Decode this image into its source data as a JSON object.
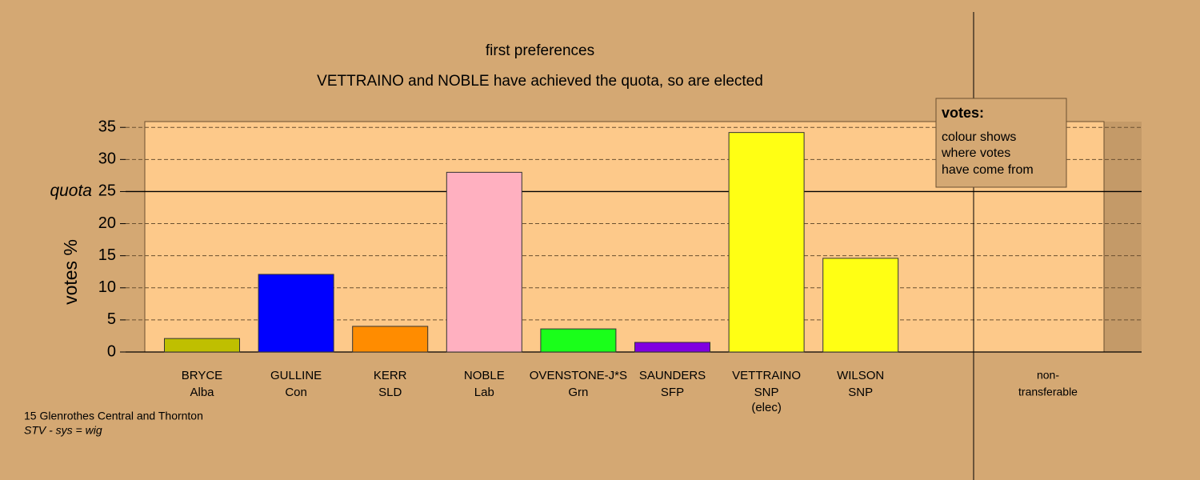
{
  "chart_data": {
    "type": "bar",
    "title": "first preferences",
    "subtitle": "VETTRAINO and NOBLE have achieved the quota, so are elected",
    "y_label": "votes %",
    "categories": [
      "BRYCE",
      "GULLINE",
      "KERR",
      "NOBLE",
      "OVENSTONE-J*S",
      "SAUNDERS",
      "VETTRAINO",
      "WILSON",
      "non-"
    ],
    "parties": [
      "Alba",
      "Con",
      "SLD",
      "Lab",
      "Grn",
      "SFP",
      "SNP",
      "SNP",
      "transferable"
    ],
    "notes": [
      null,
      null,
      null,
      null,
      null,
      null,
      "(elec)",
      null,
      null
    ],
    "values": [
      2.1,
      12.1,
      4.0,
      28.0,
      3.6,
      1.5,
      34.2,
      14.6,
      null
    ],
    "colors": [
      "#bfbf00",
      "#0000ff",
      "#ff8c00",
      "#ffb0c0",
      "#1aff1a",
      "#8000e0",
      "#ffff14",
      "#ffff14",
      "#ffffff"
    ],
    "ylim": [
      0,
      35.9
    ],
    "yticks": [
      0,
      5,
      10,
      15,
      20,
      25,
      30,
      35
    ],
    "quota": {
      "value": 25,
      "label": "quota"
    },
    "grid": true,
    "legend": {
      "title": "votes:",
      "lines": [
        "colour shows",
        "where votes",
        "have come from"
      ]
    },
    "footer": [
      "15 Glenrothes Central and Thornton",
      "STV - sys = wig"
    ]
  }
}
